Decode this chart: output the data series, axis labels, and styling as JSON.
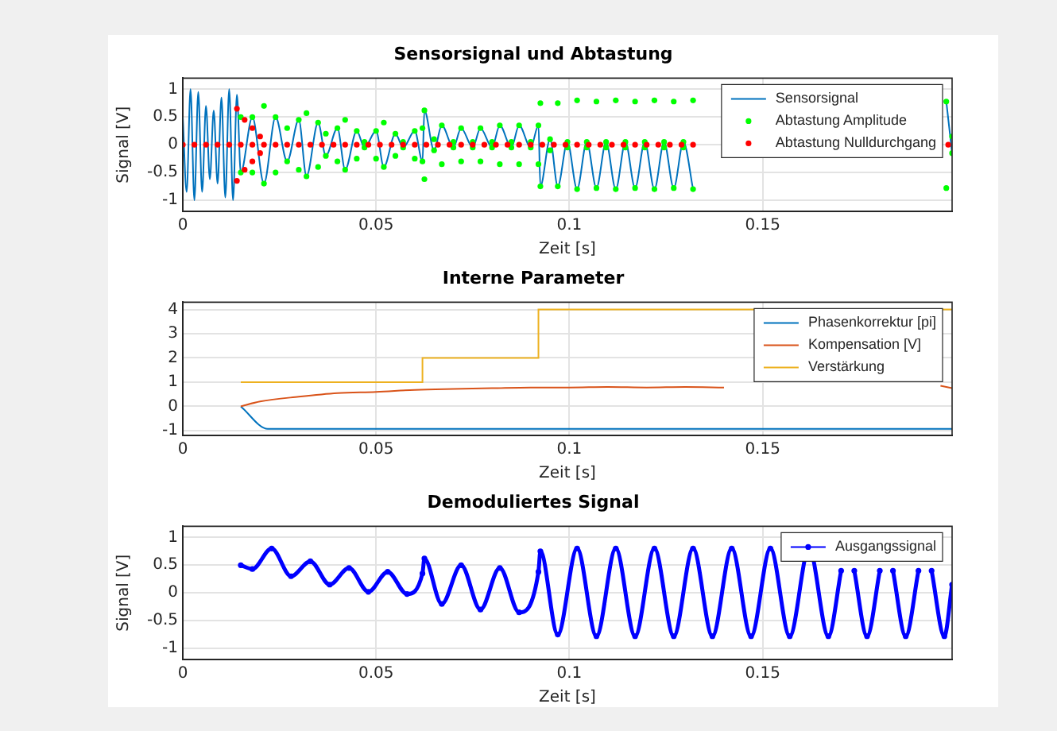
{
  "chart_data": [
    {
      "type": "line",
      "title": "Sensorsignal und Abtastung",
      "xlabel": "Zeit [s]",
      "ylabel": "Signal [V]",
      "xlim": [
        0,
        0.199
      ],
      "xticks": [
        0,
        0.05,
        0.1,
        0.15
      ],
      "ylim": [
        -1.2,
        1.2
      ],
      "yticks": [
        -1,
        -0.5,
        0,
        0.5,
        1
      ],
      "grid": true,
      "legend": "top right",
      "series": [
        {
          "name": "Sensorsignal",
          "type": "line",
          "color": "#0072bd",
          "marker": "none",
          "x": [
            0,
            0.001,
            0.002,
            0.003,
            0.004,
            0.005,
            0.006,
            0.007,
            0.008,
            0.009,
            0.01,
            0.011,
            0.012,
            0.013,
            0.014,
            0.015,
            0.018,
            0.021,
            0.024,
            0.027,
            0.03,
            0.032,
            0.035,
            0.037,
            0.04,
            0.042,
            0.045,
            0.047,
            0.05,
            0.052,
            0.055,
            0.057,
            0.06,
            0.062,
            0.0625,
            0.065,
            0.067,
            0.07,
            0.072,
            0.075,
            0.077,
            0.08,
            0.082,
            0.085,
            0.087,
            0.09,
            0.092,
            0.0925,
            0.095,
            0.097,
            0.0995,
            0.102,
            0.1045,
            0.107,
            0.1095,
            0.112,
            0.1145,
            0.117,
            0.1195,
            0.122,
            0.1245,
            0.127,
            0.1295,
            0.132,
            0.16,
            0.1975,
            0.199
          ],
          "values": [
            0.5,
            -0.85,
            1,
            -1,
            0.95,
            -0.85,
            0.7,
            -0.62,
            0.62,
            -0.7,
            0.85,
            -0.95,
            1,
            -1,
            0.9,
            -0.5,
            0.5,
            -0.7,
            0.5,
            -0.3,
            0.45,
            -0.57,
            0.4,
            -0.2,
            0.3,
            -0.45,
            0.25,
            -0.05,
            0.25,
            -0.4,
            0.2,
            -0.05,
            0.25,
            -0.3,
            0.62,
            -0.1,
            0.35,
            -0.05,
            0.3,
            -0.05,
            0.3,
            -0.05,
            0.35,
            -0.05,
            0.35,
            -0.05,
            0.35,
            -0.75,
            0.1,
            -0.75,
            0.05,
            -0.8,
            0.05,
            -0.78,
            0.05,
            -0.8,
            0.05,
            -0.78,
            0.05,
            -0.8,
            0.05,
            -0.78,
            0.05,
            -0.8,
            null,
            0.78,
            -0.15
          ]
        },
        {
          "name": "Abtastung Amplitude",
          "type": "scatter",
          "color": "#00ff00",
          "marker": "circle",
          "x": [
            0.015,
            0.018,
            0.021,
            0.024,
            0.027,
            0.03,
            0.032,
            0.035,
            0.037,
            0.04,
            0.042,
            0.045,
            0.047,
            0.05,
            0.052,
            0.055,
            0.057,
            0.06,
            0.062,
            0.0625,
            0.065,
            0.067,
            0.07,
            0.072,
            0.075,
            0.077,
            0.08,
            0.082,
            0.085,
            0.087,
            0.09,
            0.092,
            0.0925,
            0.095,
            0.097,
            0.0995,
            0.102,
            0.1045,
            0.107,
            0.1095,
            0.112,
            0.1145,
            0.117,
            0.1195,
            0.122,
            0.1245,
            0.127,
            0.1295,
            0.132,
            0.1975,
            0.199,
            0.015,
            0.018,
            0.021,
            0.024,
            0.027,
            0.03,
            0.032,
            0.035,
            0.037,
            0.04,
            0.042,
            0.045,
            0.047,
            0.05,
            0.052,
            0.055,
            0.057,
            0.06,
            0.062,
            0.0625,
            0.065,
            0.067,
            0.07,
            0.072,
            0.075,
            0.077,
            0.08,
            0.082,
            0.085,
            0.087,
            0.09,
            0.092,
            0.0925,
            0.095,
            0.097,
            0.0995,
            0.102,
            0.1045,
            0.107,
            0.1095,
            0.112,
            0.1145,
            0.117,
            0.1195,
            0.122,
            0.1245,
            0.127,
            0.1295,
            0.132,
            0.1975,
            0.199
          ],
          "values": [
            0.5,
            0.5,
            0.7,
            0.5,
            0.3,
            0.45,
            0.57,
            0.4,
            0.2,
            0.3,
            0.45,
            0.25,
            0.05,
            0.25,
            0.4,
            0.2,
            0.05,
            0.25,
            0.3,
            0.62,
            0.1,
            0.35,
            0.05,
            0.3,
            0.05,
            0.3,
            0.05,
            0.35,
            0.05,
            0.35,
            0.05,
            0.35,
            0.75,
            0.1,
            0.75,
            0.05,
            0.8,
            0.05,
            0.78,
            0.05,
            0.8,
            0.05,
            0.78,
            0.05,
            0.8,
            0.05,
            0.78,
            0.05,
            0.8,
            0.78,
            0.15,
            -0.5,
            -0.5,
            -0.7,
            -0.5,
            -0.3,
            -0.45,
            -0.57,
            -0.4,
            -0.2,
            -0.3,
            -0.45,
            -0.25,
            -0.05,
            -0.25,
            -0.4,
            -0.2,
            -0.05,
            -0.25,
            -0.3,
            -0.62,
            -0.1,
            -0.35,
            -0.05,
            -0.3,
            -0.05,
            -0.3,
            -0.05,
            -0.35,
            -0.05,
            -0.35,
            -0.05,
            -0.35,
            -0.75,
            -0.1,
            -0.75,
            -0.05,
            -0.8,
            -0.05,
            -0.78,
            -0.05,
            -0.8,
            -0.05,
            -0.78,
            -0.05,
            -0.8,
            -0.05,
            -0.78,
            -0.05,
            -0.8,
            -0.78,
            -0.15
          ]
        },
        {
          "name": "Abtastung Nulldurchgang",
          "type": "scatter",
          "color": "#ff0000",
          "marker": "circle",
          "x": [
            0,
            0.003,
            0.006,
            0.009,
            0.012,
            0.015,
            0.018,
            0.021,
            0.024,
            0.027,
            0.03,
            0.033,
            0.036,
            0.039,
            0.042,
            0.045,
            0.048,
            0.051,
            0.054,
            0.057,
            0.06,
            0.063,
            0.066,
            0.069,
            0.072,
            0.075,
            0.078,
            0.081,
            0.084,
            0.087,
            0.09,
            0.093,
            0.096,
            0.099,
            0.102,
            0.105,
            0.108,
            0.111,
            0.114,
            0.117,
            0.12,
            0.123,
            0.126,
            0.129,
            0.132,
            0.198,
            0.014,
            0.014,
            0.016,
            0.016,
            0.018,
            0.018,
            0.02,
            0.02
          ],
          "values": [
            0,
            0,
            0,
            0,
            0,
            0,
            0,
            0,
            0,
            0,
            0,
            0,
            0,
            0,
            0,
            0,
            0,
            0,
            0,
            0,
            0,
            0,
            0,
            0,
            0,
            0,
            0,
            0,
            0,
            0,
            0,
            0,
            0,
            0,
            0,
            0,
            0,
            0,
            0,
            0,
            0,
            0,
            0,
            0,
            0,
            0,
            0.65,
            -0.65,
            0.45,
            -0.45,
            0.3,
            -0.3,
            0.15,
            -0.15
          ]
        }
      ]
    },
    {
      "type": "line",
      "title": "Interne Parameter",
      "xlabel": "Zeit [s]",
      "xlim": [
        0,
        0.199
      ],
      "xticks": [
        0,
        0.05,
        0.1,
        0.15
      ],
      "ylim": [
        -1.2,
        4.3
      ],
      "yticks": [
        -1,
        0,
        1,
        2,
        3,
        4
      ],
      "grid": true,
      "legend": "top right",
      "series": [
        {
          "name": "Phasenkorrektur [pi]",
          "type": "line",
          "color": "#0072bd",
          "x": [
            0.015,
            0.022,
            0.199
          ],
          "values": [
            0,
            -0.93,
            -0.93
          ]
        },
        {
          "name": "Kompensation [V]",
          "type": "line",
          "color": "#d95319",
          "x": [
            0.015,
            0.02,
            0.03,
            0.04,
            0.05,
            0.06,
            0.07,
            0.08,
            0.09,
            0.1,
            0.11,
            0.12,
            0.13,
            0.14,
            0.15,
            0.196,
            0.199
          ],
          "values": [
            0,
            0.2,
            0.4,
            0.55,
            0.6,
            0.68,
            0.72,
            0.75,
            0.78,
            0.78,
            0.8,
            0.78,
            0.8,
            0.78,
            null,
            0.85,
            0.75
          ]
        },
        {
          "name": "Verstärkung",
          "type": "line",
          "color": "#edb120",
          "x": [
            0.015,
            0.062,
            0.062,
            0.092,
            0.092,
            0.199
          ],
          "values": [
            1,
            1,
            2,
            2,
            4,
            4
          ]
        }
      ]
    },
    {
      "type": "line",
      "title": "Demoduliertes Signal",
      "xlabel": "Zeit [s]",
      "ylabel": "Signal [V]",
      "xlim": [
        0,
        0.199
      ],
      "xticks": [
        0,
        0.05,
        0.1,
        0.15
      ],
      "ylim": [
        -1.2,
        1.2
      ],
      "yticks": [
        -1,
        -0.5,
        0,
        0.5,
        1
      ],
      "grid": true,
      "legend": "top right",
      "series": [
        {
          "name": "Ausgangssignal",
          "type": "line",
          "color": "#0000ff",
          "marker": "circle",
          "x": [
            0.015,
            0.018,
            0.023,
            0.028,
            0.033,
            0.038,
            0.043,
            0.048,
            0.053,
            0.058,
            0.062,
            0.0625,
            0.067,
            0.072,
            0.077,
            0.082,
            0.087,
            0.092,
            0.0925,
            0.097,
            0.102,
            0.107,
            0.112,
            0.117,
            0.122,
            0.127,
            0.132,
            0.137,
            0.142,
            0.147,
            0.152,
            0.157,
            0.162,
            0.167,
            0.1703,
            0.172,
            0.1737,
            0.177,
            0.1803,
            0.182,
            0.1837,
            0.187,
            0.1903,
            0.192,
            0.1937,
            0.197,
            0.199
          ],
          "values": [
            0.5,
            0.43,
            0.8,
            0.3,
            0.57,
            0.15,
            0.45,
            0.02,
            0.38,
            -0.02,
            0.35,
            0.62,
            -0.2,
            0.5,
            -0.3,
            0.45,
            -0.35,
            0.38,
            0.75,
            -0.75,
            0.8,
            -0.78,
            0.8,
            -0.78,
            0.8,
            -0.78,
            0.8,
            -0.78,
            0.8,
            -0.78,
            0.8,
            -0.78,
            0.8,
            -0.78,
            0.4,
            null,
            0.4,
            -0.78,
            0.4,
            null,
            0.4,
            -0.78,
            0.4,
            null,
            0.4,
            -0.78,
            0.15
          ]
        }
      ]
    }
  ]
}
